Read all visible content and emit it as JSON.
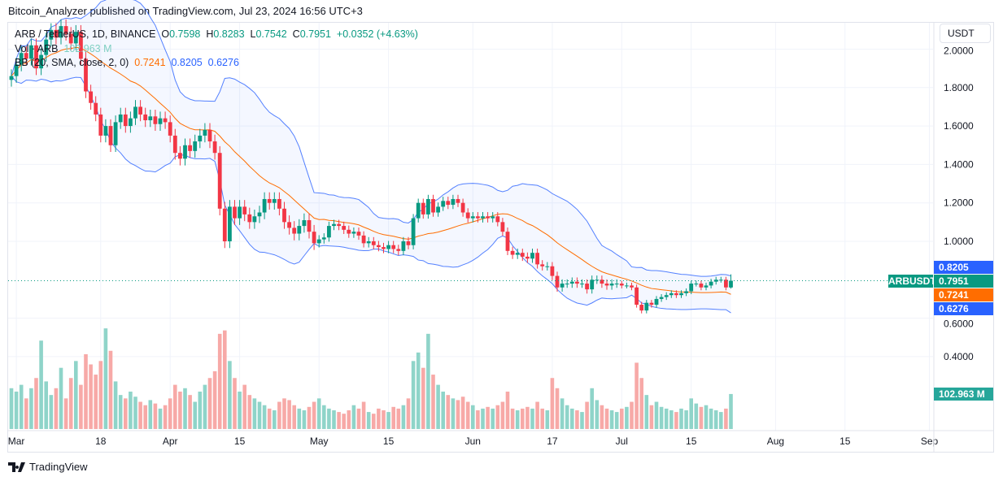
{
  "publisher_line": "Bitcoin_Analyzer published on TradingView.com, Jul 23, 2024 16:56 UTC+3",
  "legend": {
    "symbol": "ARB / TetherUS, 1D, BINANCE",
    "o_label": "O",
    "o": "0.7598",
    "h_label": "H",
    "h": "0.8283",
    "l_label": "L",
    "l": "0.7542",
    "c_label": "C",
    "c": "0.7951",
    "change": "+0.0352 (+4.63%)",
    "vol_label": "Vol · ARB",
    "vol": "102.963 M",
    "bb_label": "BB (20, SMA, close, 2, 0)",
    "bb_basis": "0.7241",
    "bb_upper": "0.8205",
    "bb_lower": "0.6276"
  },
  "currency_button": "USDT",
  "symbol_tag": "ARBUSDT",
  "price_labels": {
    "upper": "0.8205",
    "close": "0.7951",
    "basis": "0.7241",
    "lower": "0.6276",
    "volume": "102.963 M"
  },
  "footer_logo": "TradingView",
  "colors": {
    "up": "#089981",
    "down": "#f23645",
    "bb_band": "#2962ff",
    "bb_basis": "#ff6d00",
    "vol_up": "#8fd4c9",
    "vol_down": "#f7a9a7"
  },
  "chart_data": {
    "type": "candlestick",
    "interval": "1D",
    "start_date": "2024-02-29",
    "end_date": "2024-07-23",
    "y_ticks": [
      "2.0000",
      "1.8000",
      "1.6000",
      "1.4000",
      "1.2000",
      "1.0000",
      "0.6000",
      "0.4000"
    ],
    "y_unit": "USDT",
    "x_ticks": [
      {
        "label": "Mar",
        "date": "2024-03-01"
      },
      {
        "label": "18",
        "date": "2024-03-18"
      },
      {
        "label": "Apr",
        "date": "2024-04-01"
      },
      {
        "label": "15",
        "date": "2024-04-15"
      },
      {
        "label": "May",
        "date": "2024-05-01"
      },
      {
        "label": "15",
        "date": "2024-05-15"
      },
      {
        "label": "Jun",
        "date": "2024-06-01"
      },
      {
        "label": "17",
        "date": "2024-06-17"
      },
      {
        "label": "Jul",
        "date": "2024-07-01"
      },
      {
        "label": "15",
        "date": "2024-07-15"
      },
      {
        "label": "Aug",
        "date": "2024-08-01"
      },
      {
        "label": "15",
        "date": "2024-08-15"
      },
      {
        "label": "Sep",
        "date": "2024-09-01"
      }
    ],
    "first_open": 1.84,
    "last_candle": {
      "open": 0.7598,
      "high": 0.8283,
      "low": 0.7542,
      "close": 0.7951
    },
    "closes": [
      1.86,
      1.92,
      1.98,
      1.95,
      2.02,
      1.9,
      1.97,
      2.05,
      2.1,
      2.06,
      2.12,
      2.08,
      2.03,
      2.09,
      1.95,
      1.78,
      1.72,
      1.66,
      1.55,
      1.6,
      1.5,
      1.62,
      1.66,
      1.6,
      1.64,
      1.7,
      1.66,
      1.63,
      1.65,
      1.61,
      1.64,
      1.62,
      1.55,
      1.46,
      1.43,
      1.5,
      1.47,
      1.52,
      1.55,
      1.58,
      1.52,
      1.46,
      1.17,
      1.0,
      1.18,
      1.12,
      1.18,
      1.14,
      1.1,
      1.13,
      1.15,
      1.22,
      1.2,
      1.22,
      1.17,
      1.1,
      1.07,
      1.04,
      1.08,
      1.11,
      1.05,
      0.99,
      1.01,
      1.02,
      1.08,
      1.09,
      1.08,
      1.06,
      1.04,
      1.05,
      1.03,
      0.99,
      1.0,
      0.98,
      0.97,
      0.96,
      0.98,
      0.96,
      0.95,
      1.0,
      0.98,
      1.12,
      1.2,
      1.14,
      1.22,
      1.15,
      1.18,
      1.21,
      1.19,
      1.22,
      1.2,
      1.15,
      1.12,
      1.13,
      1.12,
      1.13,
      1.12,
      1.13,
      1.1,
      1.05,
      0.95,
      0.93,
      0.94,
      0.92,
      0.91,
      0.94,
      0.88,
      0.87,
      0.87,
      0.82,
      0.76,
      0.78,
      0.78,
      0.79,
      0.78,
      0.78,
      0.75,
      0.8,
      0.8,
      0.78,
      0.77,
      0.78,
      0.78,
      0.77,
      0.77,
      0.76,
      0.67,
      0.64,
      0.68,
      0.67,
      0.7,
      0.71,
      0.72,
      0.73,
      0.72,
      0.73,
      0.74,
      0.78,
      0.78,
      0.76,
      0.77,
      0.79,
      0.8,
      0.8,
      0.76,
      0.7951
    ],
    "volumes_millions": [
      120,
      110,
      130,
      90,
      120,
      150,
      260,
      140,
      100,
      120,
      180,
      90,
      150,
      200,
      130,
      220,
      190,
      160,
      200,
      296,
      230,
      140,
      100,
      90,
      110,
      95,
      80,
      70,
      85,
      75,
      60,
      70,
      90,
      130,
      110,
      120,
      100,
      80,
      110,
      130,
      150,
      170,
      280,
      290,
      200,
      150,
      110,
      130,
      100,
      90,
      80,
      70,
      60,
      55,
      80,
      90,
      85,
      70,
      60,
      55,
      65,
      80,
      90,
      70,
      60,
      55,
      50,
      45,
      55,
      70,
      60,
      80,
      50,
      45,
      60,
      55,
      50,
      65,
      60,
      70,
      90,
      200,
      225,
      180,
      280,
      160,
      130,
      110,
      100,
      90,
      85,
      95,
      80,
      70,
      55,
      60,
      65,
      60,
      70,
      80,
      110,
      60,
      55,
      60,
      65,
      60,
      80,
      60,
      55,
      150,
      120,
      90,
      70,
      60,
      55,
      50,
      80,
      120,
      85,
      70,
      60,
      55,
      50,
      60,
      65,
      80,
      195,
      150,
      100,
      70,
      80,
      65,
      60,
      55,
      50,
      60,
      55,
      90,
      75,
      65,
      70,
      60,
      55,
      50,
      60,
      102.963
    ],
    "indicator": {
      "name": "Bollinger Bands",
      "length": 20,
      "source": "close",
      "stddev": 2,
      "last_basis": 0.7241,
      "last_upper": 0.8205,
      "last_lower": 0.6276
    },
    "grid": true
  }
}
